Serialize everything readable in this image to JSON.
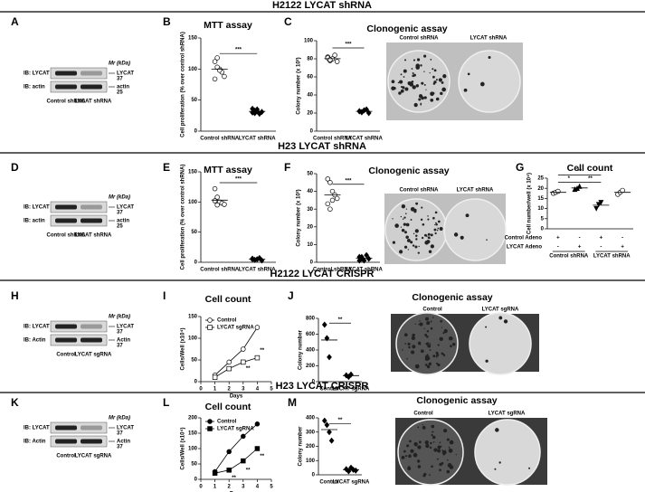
{
  "rows": [
    "H2122 LYCAT shRNA",
    "H23 LYCAT shRNA",
    "H2122 LYCAT CRISPR",
    "H23 LYCAT CRISPR"
  ],
  "panel_letters": [
    "A",
    "B",
    "C",
    "D",
    "E",
    "F",
    "G",
    "H",
    "I",
    "J",
    "K",
    "L",
    "M"
  ],
  "blots": [
    {
      "mr": "Mr (kDa)",
      "bands": [
        {
          "ib": "IB: LYCAT",
          "name": "LYCAT",
          "mw": "37"
        },
        {
          "ib": "IB: actin",
          "name": "actin",
          "mw": "25"
        }
      ],
      "lanes": [
        "Control shRNA",
        "LYCAT shRNA"
      ]
    },
    {
      "mr": "Mr (kDa)",
      "bands": [
        {
          "ib": "IB: LYCAT",
          "name": "LYCAT",
          "mw": "37"
        },
        {
          "ib": "IB: actin",
          "name": "actin",
          "mw": "25"
        }
      ],
      "lanes": [
        "Control shRNA",
        "LYCAT shRNA"
      ]
    },
    {
      "mr": "Mr (kDa)",
      "bands": [
        {
          "ib": "IB: LYCAT",
          "name": "LYCAT",
          "mw": "37"
        },
        {
          "ib": "IB: Actin",
          "name": "Actin",
          "mw": "37"
        }
      ],
      "lanes": [
        "Control",
        "LYCAT sgRNA"
      ]
    },
    {
      "mr": "Mr (kDa)",
      "bands": [
        {
          "ib": "IB: LYCAT",
          "name": "LYCAT",
          "mw": "37"
        },
        {
          "ib": "IB: Actin",
          "name": "Actin",
          "mw": "37"
        }
      ],
      "lanes": [
        "Control",
        "LYCAT sgRNA"
      ]
    }
  ],
  "photos": [
    {
      "labels": [
        "Control shRNA",
        "LYCAT shRNA"
      ]
    },
    {
      "labels": [
        "Control shRNA",
        "LYCAT shRNA"
      ]
    },
    {
      "labels": [
        "Control",
        "LYCAT sgRNA"
      ]
    },
    {
      "labels": [
        "Control",
        "LYCAT sgRNA"
      ]
    }
  ],
  "chart_data": [
    {
      "type": "strip",
      "title": "MTT assay",
      "ylabel": "Cell proliferation (% over control shRNA)",
      "categories": [
        "Control shRNA",
        "LYCAT shRNA"
      ],
      "markers": [
        "circle-open",
        "diamond"
      ],
      "points": [
        [
          112,
          118,
          100,
          95,
          88,
          84,
          103,
          98
        ],
        [
          30,
          33,
          35,
          28,
          31,
          36,
          29,
          32
        ]
      ],
      "ylim": [
        0,
        150
      ],
      "yticks": [
        0,
        50,
        100,
        150
      ],
      "sig": [
        {
          "label": "***",
          "from": 0,
          "to": 1,
          "y": 125
        }
      ]
    },
    {
      "type": "strip",
      "title": "Clonogenic assay",
      "ylabel": "Colony number (x 10²)",
      "categories": [
        "Control shRNA",
        "LYCAT shRNA"
      ],
      "markers": [
        "circle-open",
        "diamond"
      ],
      "points": [
        [
          82,
          78,
          80,
          84,
          77,
          81,
          79
        ],
        [
          22,
          21,
          23,
          24,
          20,
          22,
          21
        ]
      ],
      "ylim": [
        0,
        100
      ],
      "yticks": [
        0,
        20,
        40,
        60,
        80,
        100
      ],
      "sig": [
        {
          "label": "***",
          "from": 0,
          "to": 1,
          "y": 92
        }
      ]
    },
    {
      "type": "strip",
      "title": "MTT assay",
      "ylabel": "Cell proliferation (% over control shRNA)",
      "categories": [
        "Control shRNA",
        "LYCAT shRNA"
      ],
      "markers": [
        "circle-open",
        "diamond"
      ],
      "points": [
        [
          122,
          108,
          100,
          98,
          96,
          102,
          95
        ],
        [
          6,
          4,
          5,
          7,
          3,
          5
        ]
      ],
      "ylim": [
        0,
        150
      ],
      "yticks": [
        0,
        50,
        100,
        150
      ],
      "sig": [
        {
          "label": "***",
          "from": 0,
          "to": 1,
          "y": 132
        }
      ]
    },
    {
      "type": "strip",
      "title": "Clonogenic assay",
      "ylabel": "Colony number (x 10²)",
      "categories": [
        "Control shRNA",
        "LYCAT shRNA"
      ],
      "markers": [
        "circle-open",
        "diamond"
      ],
      "points": [
        [
          47,
          45,
          40,
          38,
          36,
          33,
          30,
          35
        ],
        [
          3,
          2,
          1,
          4,
          2,
          1,
          3
        ]
      ],
      "ylim": [
        0,
        50
      ],
      "yticks": [
        0,
        10,
        20,
        30,
        40,
        50
      ],
      "sig": [
        {
          "label": "***",
          "from": 0,
          "to": 1,
          "y": 44
        }
      ]
    },
    {
      "type": "strip",
      "title": "Cell count",
      "ylabel": "Cell number/well (x 10⁴)",
      "markers": [
        "circle-open",
        "triangle",
        "triangle-down",
        "circle-open"
      ],
      "points": [
        [
          17.5,
          18,
          18.5
        ],
        [
          19.5,
          20,
          21
        ],
        [
          10,
          12,
          13
        ],
        [
          17,
          18,
          19
        ]
      ],
      "ylim": [
        0,
        25
      ],
      "yticks": [
        0,
        5,
        10,
        15,
        20,
        25
      ],
      "conditions": [
        {
          "name": "Control Adeno",
          "signs": [
            "+",
            "-",
            "+",
            "-"
          ]
        },
        {
          "name": "LYCAT Adeno",
          "signs": [
            "-",
            "+",
            "-",
            "+"
          ]
        }
      ],
      "groups": [
        {
          "label": "Control shRNA",
          "span": [
            0,
            1
          ]
        },
        {
          "label": "LYCAT shRNA",
          "span": [
            2,
            3
          ]
        }
      ],
      "sig": [
        {
          "label": "**",
          "from": 0,
          "to": 2,
          "y": 26.5
        },
        {
          "label": "*",
          "from": 0,
          "to": 1,
          "y": 23
        },
        {
          "label": "**",
          "from": 1,
          "to": 2,
          "y": 23
        }
      ]
    },
    {
      "type": "line",
      "title": "Cell count",
      "ylabel": "Cells/Well (x10⁴)",
      "xlabel": "Days",
      "x": [
        1,
        2,
        3,
        4
      ],
      "series": [
        {
          "name": "Control",
          "marker": "circle-open",
          "values": [
            15,
            45,
            75,
            125
          ]
        },
        {
          "name": "LYCAT sgRNA",
          "marker": "square-open",
          "values": [
            10,
            30,
            45,
            55
          ]
        }
      ],
      "xlim": [
        0,
        5
      ],
      "xticks": [
        0,
        1,
        2,
        3,
        4,
        5
      ],
      "ylim": [
        0,
        150
      ],
      "yticks": [
        0,
        50,
        100,
        150
      ],
      "notes": [
        {
          "label": "**",
          "x": 3,
          "y": 30
        },
        {
          "label": "**",
          "x": 4,
          "y": 72
        }
      ]
    },
    {
      "type": "strip",
      "title": "Clonogenic assay",
      "ylabel": "Colony number",
      "categories": [
        "Control",
        "LYCAT sgRNA"
      ],
      "markers": [
        "diamond",
        "diamond"
      ],
      "points": [
        [
          720,
          550,
          310
        ],
        [
          80,
          60,
          90
        ]
      ],
      "ylim": [
        0,
        800
      ],
      "yticks": [
        0,
        200,
        400,
        600,
        800
      ],
      "sig": [
        {
          "label": "**",
          "from": 0,
          "to": 1,
          "y": 740
        }
      ]
    },
    {
      "type": "line",
      "title": "Cell count",
      "ylabel": "Cells/Well (x10⁴)",
      "xlabel": "Days",
      "x": [
        1,
        2,
        3,
        4
      ],
      "series": [
        {
          "name": "Control",
          "marker": "circle",
          "values": [
            25,
            90,
            140,
            180
          ]
        },
        {
          "name": "LYCAT sgRNA",
          "marker": "square",
          "values": [
            20,
            30,
            60,
            100
          ]
        }
      ],
      "xlim": [
        0,
        5
      ],
      "xticks": [
        0,
        1,
        2,
        3,
        4,
        5
      ],
      "ylim": [
        0,
        200
      ],
      "yticks": [
        0,
        50,
        100,
        150,
        200
      ],
      "notes": [
        {
          "label": "**",
          "x": 2,
          "y": 5
        },
        {
          "label": "**",
          "x": 3,
          "y": 30
        },
        {
          "label": "**",
          "x": 4,
          "y": 75
        }
      ]
    },
    {
      "type": "strip",
      "title": "Clonogenic assay",
      "ylabel": "Colony number",
      "categories": [
        "Control",
        "LYCAT sgRNA"
      ],
      "markers": [
        "diamond",
        "diamond"
      ],
      "points": [
        [
          380,
          350,
          300,
          240
        ],
        [
          40,
          25,
          50,
          35,
          30
        ]
      ],
      "ylim": [
        0,
        400
      ],
      "yticks": [
        0,
        100,
        200,
        300,
        400
      ],
      "sig": [
        {
          "label": "**",
          "from": 0,
          "to": 1,
          "y": 360
        }
      ]
    }
  ]
}
